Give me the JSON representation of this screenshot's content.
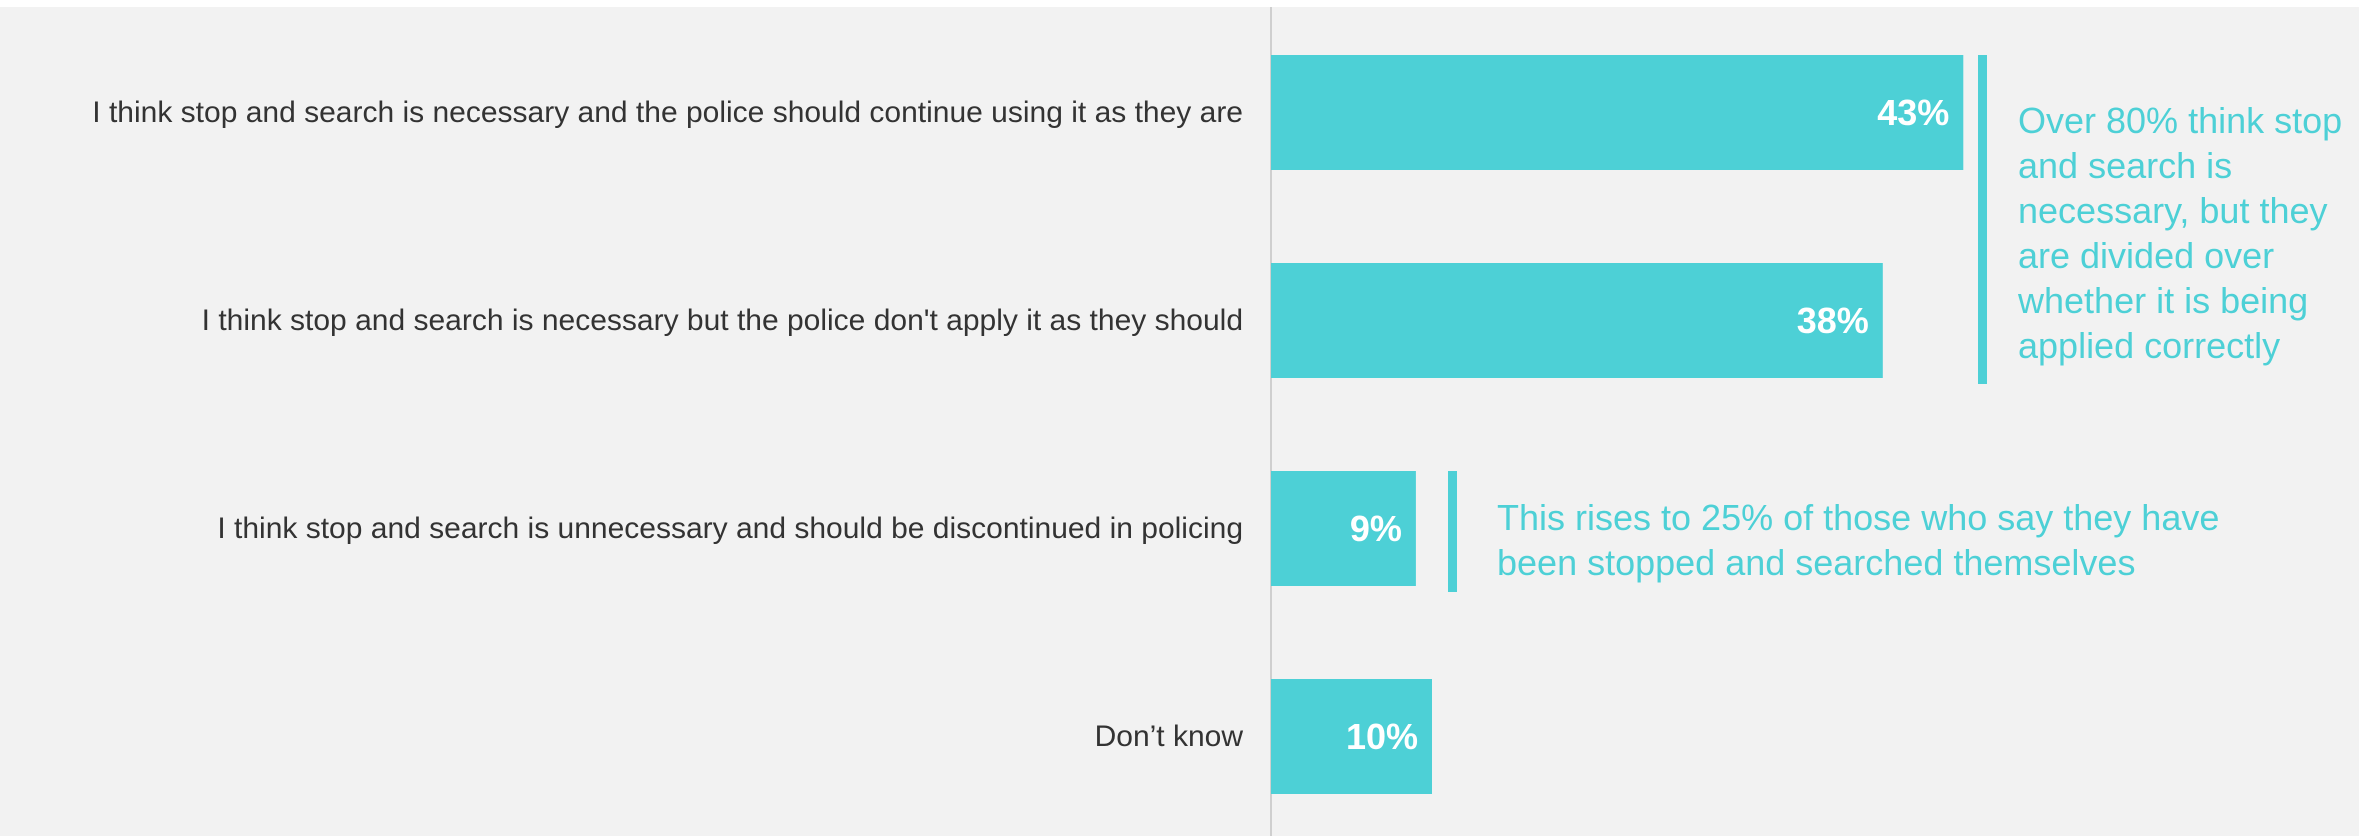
{
  "chart_data": {
    "type": "bar",
    "orientation": "horizontal",
    "categories": [
      "I think stop and search is necessary and the police should continue using it as they are",
      "I think stop and search is necessary but the police don't apply it as they should",
      "I think stop and search is unnecessary and should be discontinued in policing",
      "Don’t know"
    ],
    "values": [
      43,
      38,
      9,
      10
    ],
    "value_labels": [
      "43%",
      "38%",
      "9%",
      "10%"
    ],
    "title": "",
    "xlabel": "",
    "ylabel": "",
    "xlim": [
      0,
      100
    ],
    "grid": false,
    "legend": "none",
    "colors": {
      "bar": "#4dd0d6",
      "bar_label": "#ffffff",
      "category_label": "#333333",
      "axis": "#cfcfcf",
      "annotation": "#4dd0d6",
      "background": "#f2f2f2"
    },
    "annotations": [
      {
        "text": "Over 80% think stop and search is necessary, but they are divided over whether it is being applied correctly",
        "spans_categories": [
          0,
          1
        ]
      },
      {
        "text": "This rises to 25% of those who say they have been stopped and searched themselves",
        "spans_categories": [
          2
        ]
      }
    ]
  }
}
